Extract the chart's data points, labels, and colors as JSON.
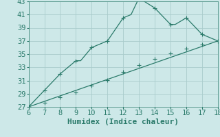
{
  "title": "",
  "xlabel": "Humidex (Indice chaleur)",
  "ylabel": "",
  "bg_color": "#cde8e8",
  "grid_color": "#aacccc",
  "line_color": "#2a7a6a",
  "xlim": [
    6,
    18
  ],
  "ylim": [
    27,
    43
  ],
  "xticks": [
    6,
    7,
    8,
    9,
    10,
    11,
    12,
    13,
    14,
    15,
    16,
    17,
    18
  ],
  "yticks": [
    27,
    29,
    31,
    33,
    35,
    37,
    39,
    41,
    43
  ],
  "curve1_x": [
    6,
    7,
    8,
    9,
    9.3,
    10,
    11,
    12,
    12.5,
    13,
    14,
    15,
    15.3,
    16,
    17,
    18
  ],
  "curve1_y": [
    27,
    29.5,
    32,
    34,
    34,
    36,
    37,
    40.5,
    41,
    43.5,
    42,
    39.5,
    39.5,
    40.5,
    38,
    37
  ],
  "curve2_x": [
    6,
    18
  ],
  "curve2_y": [
    27,
    37
  ],
  "marker1_x": [
    6,
    7,
    8,
    9,
    10,
    11,
    12,
    13,
    14,
    15,
    16,
    17,
    18
  ],
  "marker1_y": [
    27,
    29.5,
    32,
    34,
    36,
    37,
    40.5,
    43.5,
    42,
    39.5,
    40.5,
    38,
    37
  ],
  "marker2_x": [
    6,
    7,
    8,
    9,
    10,
    11,
    12,
    13,
    14,
    15,
    16,
    17,
    18
  ],
  "marker2_y": [
    27,
    27.6,
    28.5,
    29.2,
    30.2,
    31.1,
    32.3,
    33.3,
    34.3,
    35.1,
    35.8,
    36.5,
    37
  ],
  "marker_size": 2.5,
  "line_width": 0.9,
  "font_size": 7.5
}
